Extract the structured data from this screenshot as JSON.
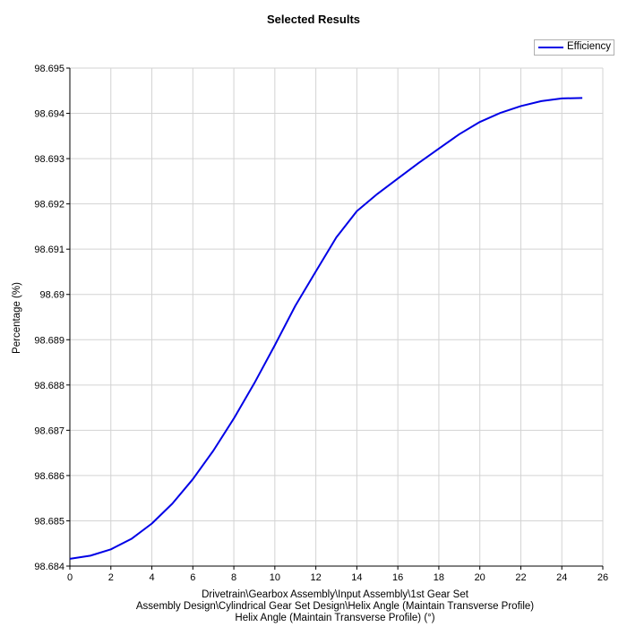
{
  "chart_data": {
    "type": "line",
    "title": "Selected Results",
    "xlabel_lines": [
      "Drivetrain\\Gearbox Assembly\\Input Assembly\\1st Gear Set",
      "Assembly Design\\Cylindrical Gear Set Design\\Helix Angle (Maintain Transverse Profile)",
      "Helix Angle (Maintain Transverse Profile) (°)"
    ],
    "ylabel": "Percentage (%)",
    "xlim": [
      0,
      26
    ],
    "ylim": [
      98.684,
      98.695
    ],
    "x_ticks": [
      0,
      2,
      4,
      6,
      8,
      10,
      12,
      14,
      16,
      18,
      20,
      22,
      24,
      26
    ],
    "y_ticks": [
      "98.684",
      "98.685",
      "98.686",
      "98.687",
      "98.688",
      "98.689",
      "98.69",
      "98.691",
      "98.692",
      "98.693",
      "98.694",
      "98.695"
    ],
    "grid": true,
    "legend_position": "top-right",
    "series": [
      {
        "name": "Efficiency",
        "color": "#0000e6",
        "x": [
          0,
          1,
          2,
          3,
          4,
          5,
          6,
          7,
          8,
          9,
          10,
          11,
          12,
          13,
          14,
          15,
          16,
          17,
          18,
          19,
          20,
          21,
          22,
          23,
          24,
          25
        ],
        "y": [
          98.68416,
          98.68423,
          98.68437,
          98.6846,
          98.68494,
          98.68538,
          98.68592,
          98.68655,
          98.68726,
          98.68804,
          98.68888,
          98.68975,
          98.69051,
          98.69126,
          98.69184,
          98.69222,
          98.69256,
          98.6929,
          98.69322,
          98.69354,
          98.69381,
          98.69401,
          98.69416,
          98.69427,
          98.69433,
          98.69434
        ]
      }
    ]
  }
}
